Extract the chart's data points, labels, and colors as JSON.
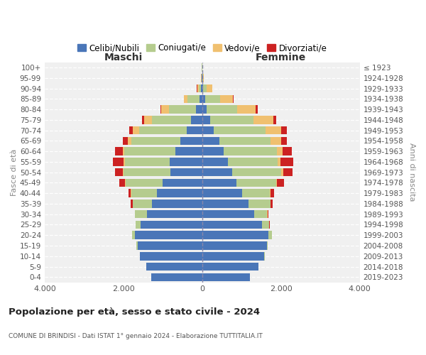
{
  "age_groups": [
    "0-4",
    "5-9",
    "10-14",
    "15-19",
    "20-24",
    "25-29",
    "30-34",
    "35-39",
    "40-44",
    "45-49",
    "50-54",
    "55-59",
    "60-64",
    "65-69",
    "70-74",
    "75-79",
    "80-84",
    "85-89",
    "90-94",
    "95-99",
    "100+"
  ],
  "birth_years": [
    "2019-2023",
    "2014-2018",
    "2009-2013",
    "2004-2008",
    "1999-2003",
    "1994-1998",
    "1989-1993",
    "1984-1988",
    "1979-1983",
    "1974-1978",
    "1969-1973",
    "1964-1968",
    "1959-1963",
    "1954-1958",
    "1949-1953",
    "1944-1948",
    "1939-1943",
    "1934-1938",
    "1929-1933",
    "1924-1928",
    "≤ 1923"
  ],
  "maschi": {
    "celibi": [
      1300,
      1420,
      1580,
      1640,
      1700,
      1560,
      1400,
      1280,
      1150,
      1000,
      800,
      820,
      680,
      550,
      400,
      280,
      150,
      70,
      25,
      8,
      5
    ],
    "coniugati": [
      0,
      3,
      10,
      25,
      80,
      130,
      300,
      480,
      650,
      950,
      1200,
      1150,
      1300,
      1250,
      1200,
      1000,
      700,
      300,
      70,
      12,
      4
    ],
    "vedovi": [
      0,
      0,
      0,
      0,
      0,
      0,
      0,
      4,
      8,
      10,
      15,
      25,
      40,
      90,
      170,
      190,
      190,
      90,
      35,
      4,
      0
    ],
    "divorziati": [
      0,
      0,
      0,
      0,
      0,
      4,
      15,
      45,
      70,
      140,
      190,
      280,
      190,
      120,
      90,
      55,
      25,
      8,
      4,
      0,
      0
    ]
  },
  "femmine": {
    "nubili": [
      1220,
      1420,
      1580,
      1640,
      1680,
      1520,
      1320,
      1170,
      1020,
      870,
      760,
      660,
      550,
      430,
      300,
      210,
      120,
      70,
      25,
      8,
      4
    ],
    "coniugate": [
      0,
      3,
      8,
      25,
      90,
      180,
      330,
      560,
      700,
      1000,
      1250,
      1250,
      1350,
      1300,
      1300,
      1100,
      760,
      380,
      90,
      18,
      4
    ],
    "vedove": [
      0,
      0,
      0,
      0,
      0,
      0,
      4,
      8,
      18,
      25,
      45,
      70,
      140,
      280,
      400,
      490,
      480,
      330,
      140,
      18,
      4
    ],
    "divorziate": [
      0,
      0,
      0,
      0,
      4,
      8,
      25,
      55,
      90,
      185,
      230,
      330,
      230,
      145,
      140,
      75,
      45,
      18,
      4,
      0,
      0
    ]
  },
  "colors": {
    "celibi_nubili": "#4a76b8",
    "coniugati": "#b5cc8e",
    "vedovi": "#f0c070",
    "divorziati": "#cc2222"
  },
  "xlim": 4000,
  "title": "Popolazione per età, sesso e stato civile - 2024",
  "subtitle": "COMUNE DI BRINDISI - Dati ISTAT 1° gennaio 2024 - Elaborazione TUTTITALIA.IT",
  "ylabel_left": "Fasce di età",
  "ylabel_right": "Anni di nascita",
  "xlabel_left": "Maschi",
  "xlabel_right": "Femmine",
  "background_color": "#ffffff",
  "legend_labels": [
    "Celibi/Nubili",
    "Coniugati/e",
    "Vedovi/e",
    "Divorziati/e"
  ],
  "bg_axes": "#f0f0f0"
}
